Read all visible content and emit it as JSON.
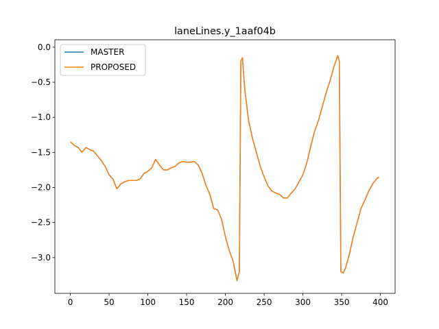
{
  "chart_data": {
    "type": "line",
    "title": "laneLines.y_1aaf04b",
    "x": [
      0,
      5,
      10,
      15,
      20,
      25,
      30,
      35,
      40,
      45,
      50,
      55,
      60,
      65,
      70,
      75,
      80,
      85,
      90,
      95,
      100,
      105,
      110,
      115,
      120,
      125,
      130,
      135,
      140,
      145,
      150,
      155,
      160,
      165,
      170,
      175,
      180,
      185,
      190,
      195,
      200,
      205,
      210,
      215,
      218,
      220,
      222,
      225,
      230,
      235,
      240,
      245,
      250,
      255,
      260,
      265,
      270,
      275,
      280,
      285,
      290,
      295,
      300,
      305,
      310,
      315,
      320,
      325,
      330,
      335,
      340,
      345,
      347,
      349,
      352,
      355,
      360,
      365,
      370,
      375,
      380,
      385,
      390,
      395,
      398
    ],
    "series": [
      {
        "name": "MASTER",
        "color": "#1f77b4",
        "values": [
          -1.35,
          -1.4,
          -1.43,
          -1.5,
          -1.43,
          -1.46,
          -1.48,
          -1.55,
          -1.62,
          -1.7,
          -1.82,
          -1.88,
          -2.02,
          -1.95,
          -1.92,
          -1.9,
          -1.9,
          -1.9,
          -1.88,
          -1.8,
          -1.77,
          -1.72,
          -1.6,
          -1.68,
          -1.75,
          -1.75,
          -1.72,
          -1.7,
          -1.65,
          -1.63,
          -1.64,
          -1.64,
          -1.63,
          -1.68,
          -1.8,
          -1.97,
          -2.1,
          -2.3,
          -2.32,
          -2.45,
          -2.7,
          -2.9,
          -3.05,
          -3.33,
          -3.2,
          -0.2,
          -0.15,
          -0.6,
          -1.05,
          -1.3,
          -1.5,
          -1.7,
          -1.85,
          -1.98,
          -2.05,
          -2.08,
          -2.1,
          -2.15,
          -2.15,
          -2.08,
          -2.02,
          -1.92,
          -1.82,
          -1.65,
          -1.42,
          -1.2,
          -1.05,
          -0.85,
          -0.65,
          -0.48,
          -0.28,
          -0.12,
          -0.2,
          -3.2,
          -3.22,
          -3.15,
          -2.95,
          -2.7,
          -2.5,
          -2.3,
          -2.18,
          -2.05,
          -1.95,
          -1.88,
          -1.85
        ]
      },
      {
        "name": "PROPOSED",
        "color": "#ff7f0e",
        "values": [
          -1.35,
          -1.4,
          -1.43,
          -1.5,
          -1.43,
          -1.46,
          -1.48,
          -1.55,
          -1.62,
          -1.7,
          -1.82,
          -1.88,
          -2.02,
          -1.95,
          -1.92,
          -1.9,
          -1.9,
          -1.9,
          -1.88,
          -1.8,
          -1.77,
          -1.72,
          -1.6,
          -1.68,
          -1.75,
          -1.75,
          -1.72,
          -1.7,
          -1.65,
          -1.63,
          -1.64,
          -1.64,
          -1.63,
          -1.68,
          -1.8,
          -1.97,
          -2.1,
          -2.3,
          -2.32,
          -2.45,
          -2.7,
          -2.9,
          -3.05,
          -3.33,
          -3.2,
          -0.2,
          -0.15,
          -0.6,
          -1.05,
          -1.3,
          -1.5,
          -1.7,
          -1.85,
          -1.98,
          -2.05,
          -2.08,
          -2.1,
          -2.15,
          -2.15,
          -2.08,
          -2.02,
          -1.92,
          -1.82,
          -1.65,
          -1.42,
          -1.2,
          -1.05,
          -0.85,
          -0.65,
          -0.48,
          -0.28,
          -0.12,
          -0.2,
          -3.2,
          -3.22,
          -3.15,
          -2.95,
          -2.7,
          -2.5,
          -2.3,
          -2.18,
          -2.05,
          -1.95,
          -1.88,
          -1.85
        ]
      }
    ],
    "xlim": [
      -19.95,
      418.95
    ],
    "ylim": [
      -3.51,
      0.106
    ],
    "xticks": [
      0,
      50,
      100,
      150,
      200,
      250,
      300,
      350,
      400
    ],
    "yticks": [
      {
        "value": 0,
        "label": "0.0"
      },
      {
        "value": -0.5,
        "label": "−0.5"
      },
      {
        "value": -1,
        "label": "−1.0"
      },
      {
        "value": -1.5,
        "label": "−1.5"
      },
      {
        "value": -2,
        "label": "−2.0"
      },
      {
        "value": -2.5,
        "label": "−2.5"
      },
      {
        "value": -3,
        "label": "−3.0"
      }
    ],
    "legend": "upper left"
  }
}
